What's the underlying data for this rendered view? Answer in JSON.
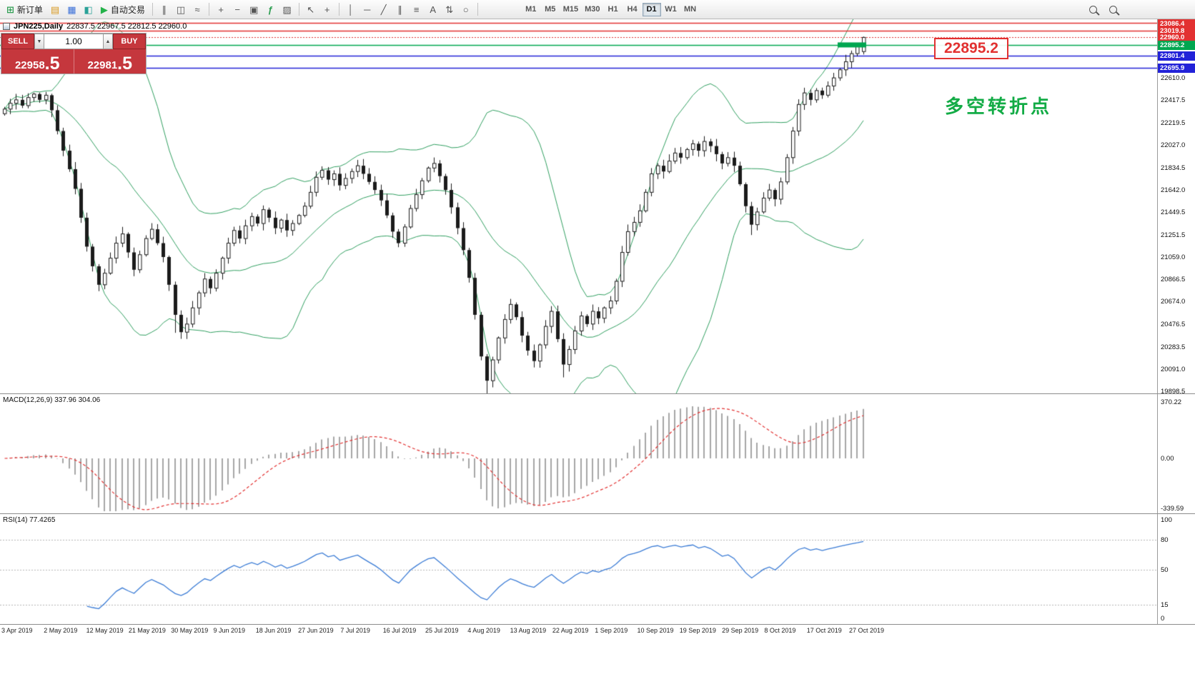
{
  "toolbar": {
    "new_order_label": "新订单",
    "auto_trading_label": "自动交易",
    "timeframes": [
      "M1",
      "M5",
      "M15",
      "M30",
      "H1",
      "H4",
      "D1",
      "W1",
      "MN"
    ],
    "active_timeframe": "D1",
    "icons": {
      "new_order": "⊞",
      "market_watch": "▤",
      "data_window": "▦",
      "navigator": "◧",
      "auto_play": "▶",
      "bar_chart": "∥",
      "candle_chart": "◫",
      "line_chart": "≈",
      "zoom_in": "+",
      "zoom_out": "−",
      "tile_windows": "▣",
      "indicators_add": "ƒ",
      "template": "▨",
      "cursor": "↖",
      "crosshair": "+",
      "vline": "│",
      "hline": "─",
      "trendline": "╱",
      "channel": "∥",
      "fibonacci": "≡",
      "text_tool": "A",
      "arrows_tool": "⇅",
      "shapes_tool": "○"
    }
  },
  "chart": {
    "symbol_title": "JPN225,Daily",
    "ohlc_text": "22837.5 22967.5 22812.5 22960.0",
    "annotation": "多空转折点",
    "annotation_color": "#12ab45",
    "price_callout": "22895.2",
    "callout_color": "#e23131",
    "price_scale": {
      "special": [
        {
          "label": "23086.4",
          "price": 23086.4,
          "bg": "#e23131"
        },
        {
          "label": "23019.8",
          "price": 23019.8,
          "bg": "#e23131"
        },
        {
          "label": "22960.0",
          "price": 22960.0,
          "bg": "#e23131"
        },
        {
          "label": "22895.2",
          "price": 22895.2,
          "bg": "#00a650"
        },
        {
          "label": "22801.4",
          "price": 22801.4,
          "bg": "#2222d8"
        },
        {
          "label": "22695.9",
          "price": 22695.9,
          "bg": "#2222d8"
        }
      ],
      "ticks": [
        {
          "label": "22610.0",
          "price": 22610.0
        },
        {
          "label": "22417.5",
          "price": 22417.5
        },
        {
          "label": "22219.5",
          "price": 22219.5
        },
        {
          "label": "22027.0",
          "price": 22027.0
        },
        {
          "label": "21834.5",
          "price": 21834.5
        },
        {
          "label": "21642.0",
          "price": 21642.0
        },
        {
          "label": "21449.5",
          "price": 21449.5
        },
        {
          "label": "21251.5",
          "price": 21251.5
        },
        {
          "label": "21059.0",
          "price": 21059.0
        },
        {
          "label": "20866.5",
          "price": 20866.5
        },
        {
          "label": "20674.0",
          "price": 20674.0
        },
        {
          "label": "20476.5",
          "price": 20476.5
        },
        {
          "label": "20283.5",
          "price": 20283.5
        },
        {
          "label": "20091.0",
          "price": 20091.0
        },
        {
          "label": "19898.5",
          "price": 19898.5
        }
      ]
    }
  },
  "trade_widget": {
    "sell_label": "SELL",
    "buy_label": "BUY",
    "volume": "1.00",
    "sell_price_main": "22958",
    "sell_price_pips": ".5",
    "buy_price_main": "22981",
    "buy_price_pips": ".5"
  },
  "macd": {
    "label": "MACD(12,26,9) 337.96 304.06",
    "scale_top": "370.22",
    "scale_zero": "0.00",
    "scale_bottom": "-339.59"
  },
  "rsi": {
    "label": "RSI(14) 77.4265",
    "scale": [
      "100",
      "80",
      "50",
      "15",
      "0"
    ]
  },
  "chart_data": [
    {
      "type": "candlestick",
      "symbol": "JPN225",
      "timeframe": "Daily",
      "title": "JPN225,Daily",
      "last_ohlc": {
        "open": 22837.5,
        "high": 22967.5,
        "low": 22812.5,
        "close": 22960.0
      },
      "ylim": [
        19880,
        23117
      ],
      "x_tick_labels": [
        "3 Apr 2019",
        "2 May 2019",
        "12 May 2019",
        "21 May 2019",
        "30 May 2019",
        "9 Jun 2019",
        "18 Jun 2019",
        "27 Jun 2019",
        "7 Jul 2019",
        "16 Jul 2019",
        "25 Jul 2019",
        "4 Aug 2019",
        "13 Aug 2019",
        "22 Aug 2019",
        "1 Sep 2019",
        "10 Sep 2019",
        "19 Sep 2019",
        "29 Sep 2019",
        "8 Oct 2019",
        "17 Oct 2019",
        "27 Oct 2019"
      ],
      "closes": [
        22340,
        22390,
        22420,
        22370,
        22440,
        22470,
        22420,
        22460,
        22330,
        22150,
        21980,
        21820,
        21650,
        21400,
        21150,
        20980,
        20820,
        20920,
        21050,
        21180,
        21260,
        21100,
        20950,
        21080,
        21220,
        21300,
        21180,
        21060,
        20820,
        20560,
        20410,
        20480,
        20620,
        20750,
        20870,
        20790,
        20920,
        21050,
        21180,
        21290,
        21220,
        21330,
        21410,
        21350,
        21470,
        21400,
        21310,
        21380,
        21290,
        21350,
        21420,
        21500,
        21620,
        21750,
        21810,
        21730,
        21780,
        21680,
        21740,
        21800,
        21850,
        21780,
        21710,
        21640,
        21550,
        21420,
        21280,
        21180,
        21320,
        21480,
        21600,
        21720,
        21830,
        21870,
        21760,
        21640,
        21490,
        21310,
        21120,
        20880,
        20560,
        20200,
        19990,
        20170,
        20360,
        20520,
        20650,
        20540,
        20380,
        20250,
        20160,
        20300,
        20460,
        20590,
        20350,
        20130,
        20260,
        20420,
        20550,
        20480,
        20590,
        20530,
        20620,
        20680,
        20850,
        21100,
        21280,
        21360,
        21460,
        21620,
        21780,
        21850,
        21800,
        21890,
        21960,
        21920,
        21990,
        22040,
        21980,
        22060,
        22020,
        21950,
        21870,
        21920,
        21850,
        21690,
        21500,
        21340,
        21450,
        21570,
        21640,
        21560,
        21710,
        21920,
        22150,
        22380,
        22480,
        22420,
        22500,
        22460,
        22540,
        22610,
        22680,
        22750,
        22820,
        22880,
        22960
      ],
      "long_lower_wicks": {
        "29": 130,
        "82": 70,
        "95": 60,
        "127": 70
      },
      "overlays": {
        "bollinger_period": 20,
        "bollinger_dev": 2,
        "bollinger_color": "#2f9e5f"
      },
      "hlines": [
        {
          "price": 23086.4,
          "color": "#e23131",
          "style": "solid"
        },
        {
          "price": 23019.8,
          "color": "#e23131",
          "style": "solid"
        },
        {
          "price": 22960.0,
          "color": "#e23131",
          "style": "dotted"
        },
        {
          "price": 22895.2,
          "color": "#00a650",
          "style": "solid",
          "thick_segment": true
        },
        {
          "price": 22801.4,
          "color": "#2222d8",
          "style": "solid"
        },
        {
          "price": 22695.9,
          "color": "#2222d8",
          "style": "solid"
        }
      ]
    },
    {
      "type": "bar",
      "name": "MACD",
      "params": "12,26,9",
      "current_main": 337.96,
      "current_signal": 304.06,
      "ylim": [
        -339.59,
        370.22
      ],
      "histogram_color": "#a6a6a6",
      "signal_color": "#e23131"
    },
    {
      "type": "line",
      "name": "RSI",
      "period": 14,
      "current": 77.4265,
      "levels": [
        80,
        50,
        15
      ],
      "ylim": [
        0,
        100
      ],
      "line_color": "#3a7bd5"
    }
  ]
}
